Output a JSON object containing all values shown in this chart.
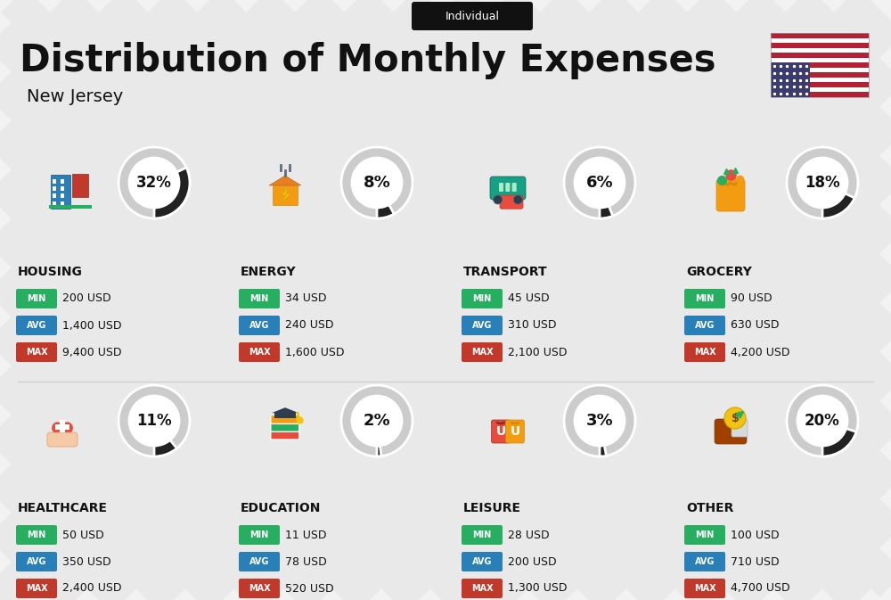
{
  "title": "Distribution of Monthly Expenses",
  "subtitle": "Individual",
  "location": "New Jersey",
  "background_color": "#f2f2f2",
  "categories": [
    {
      "name": "HOUSING",
      "percent": 32,
      "min": "200 USD",
      "avg": "1,400 USD",
      "max": "9,400 USD",
      "row": 0,
      "col": 0
    },
    {
      "name": "ENERGY",
      "percent": 8,
      "min": "34 USD",
      "avg": "240 USD",
      "max": "1,600 USD",
      "row": 0,
      "col": 1
    },
    {
      "name": "TRANSPORT",
      "percent": 6,
      "min": "45 USD",
      "avg": "310 USD",
      "max": "2,100 USD",
      "row": 0,
      "col": 2
    },
    {
      "name": "GROCERY",
      "percent": 18,
      "min": "90 USD",
      "avg": "630 USD",
      "max": "4,200 USD",
      "row": 0,
      "col": 3
    },
    {
      "name": "HEALTHCARE",
      "percent": 11,
      "min": "50 USD",
      "avg": "350 USD",
      "max": "2,400 USD",
      "row": 1,
      "col": 0
    },
    {
      "name": "EDUCATION",
      "percent": 2,
      "min": "11 USD",
      "avg": "78 USD",
      "max": "520 USD",
      "row": 1,
      "col": 1
    },
    {
      "name": "LEISURE",
      "percent": 3,
      "min": "28 USD",
      "avg": "200 USD",
      "max": "1,300 USD",
      "row": 1,
      "col": 2
    },
    {
      "name": "OTHER",
      "percent": 20,
      "min": "100 USD",
      "avg": "710 USD",
      "max": "4,700 USD",
      "row": 1,
      "col": 3
    }
  ],
  "color_min": "#27ae60",
  "color_avg": "#2980b9",
  "color_max": "#c0392b",
  "donut_filled": "#222222",
  "donut_empty": "#cccccc",
  "stripe_color": "#e9e9e9",
  "divider_color": "#d0d0d0",
  "pill_bg": "#111111",
  "flag_red": "#B22234",
  "flag_blue": "#3C3B6E"
}
